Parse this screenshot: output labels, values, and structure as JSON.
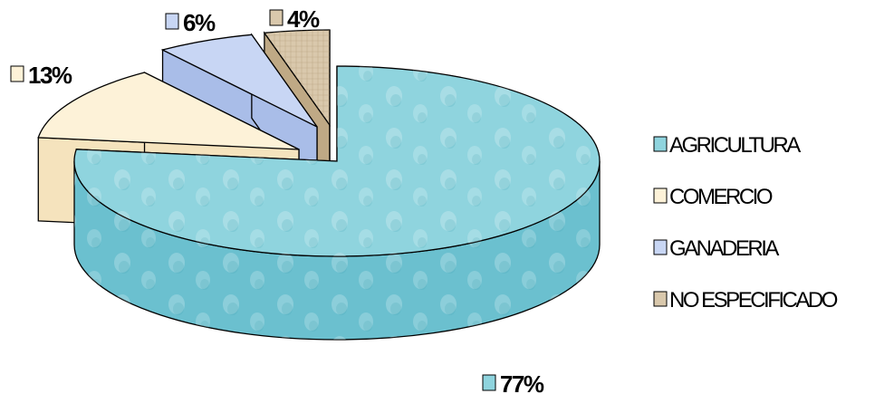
{
  "chart_data": {
    "type": "pie",
    "title": "",
    "slices": [
      {
        "label": "AGRICULTURA",
        "value": 77,
        "value_label": "77%",
        "color": "#8fd4de",
        "side_color": "#6bc0cf"
      },
      {
        "label": "COMERCIO",
        "value": 13,
        "value_label": "13%",
        "color": "#fdf2d8",
        "side_color": "#f5e3bd"
      },
      {
        "label": "GANADERIA",
        "value": 6,
        "value_label": "6%",
        "color": "#c8d6f4",
        "side_color": "#a9bde8"
      },
      {
        "label": "NO ESPECIFICADO",
        "value": 4,
        "value_label": "4%",
        "color": "#d9c8ac",
        "side_color": "#bfa985"
      }
    ],
    "legend_position": "right",
    "style": "3d-exploded"
  }
}
